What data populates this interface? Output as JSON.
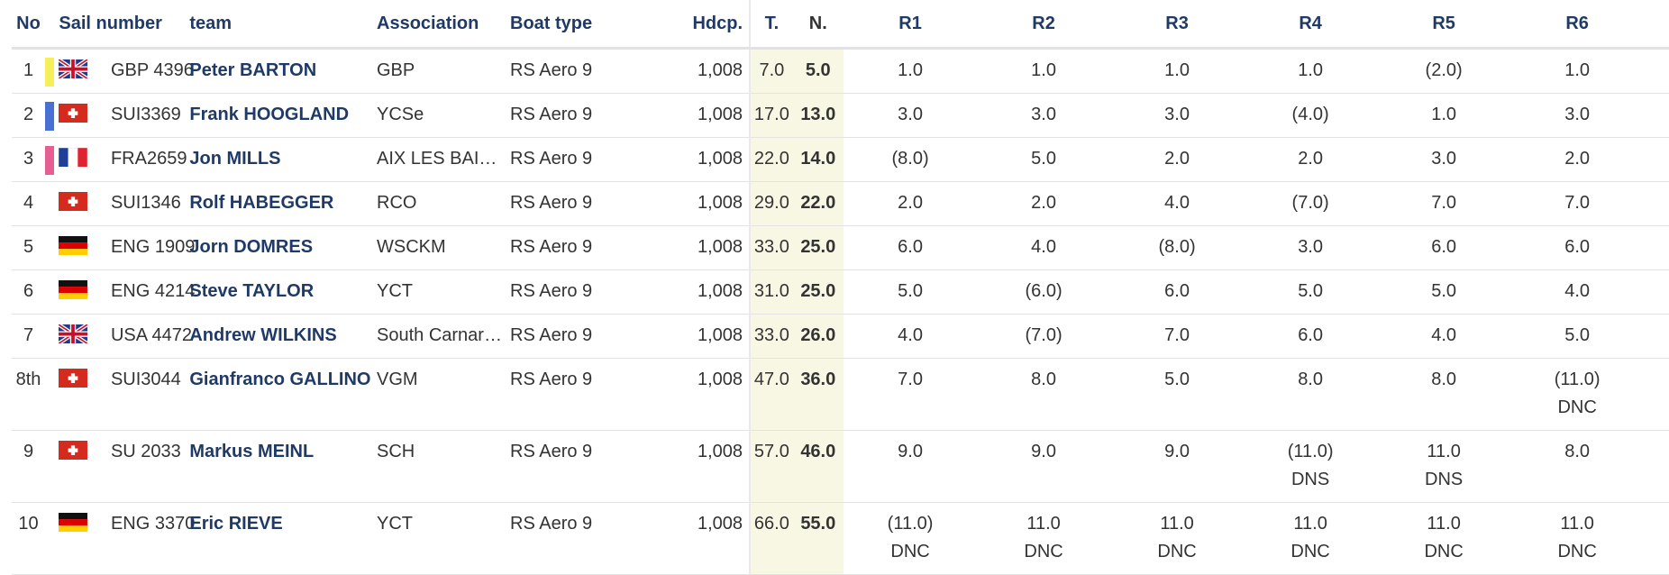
{
  "headers": {
    "no": "No",
    "sail_number": "Sail number",
    "team": "team",
    "association": "Association",
    "boat_type": "Boat type",
    "hdcp": "Hdcp.",
    "total": "T.",
    "net": "N.",
    "r1": "R1",
    "r2": "R2",
    "r3": "R3",
    "r4": "R4",
    "r5": "R5",
    "r6": "R6"
  },
  "colors": {
    "header_text": "#1f3a66",
    "team_text": "#1f3a66",
    "points_bg": "#f8f7e4",
    "gold_marker": "#f5ef5a",
    "silver_marker": "#4a6fd4",
    "bronze_marker": "#e65f93"
  },
  "rows": [
    {
      "no": "1",
      "marker": "gold",
      "flag": "gb-flag-icon",
      "sail": "GBP 4396",
      "team": "Peter BARTON",
      "association": "GBP",
      "boat_type": "RS Aero 9",
      "hdcp": "1,008",
      "total": "7.0",
      "net": "5.0",
      "races": [
        {
          "score": "1.0",
          "note": ""
        },
        {
          "score": "1.0",
          "note": ""
        },
        {
          "score": "1.0",
          "note": ""
        },
        {
          "score": "1.0",
          "note": ""
        },
        {
          "score": "(2.0)",
          "note": ""
        },
        {
          "score": "1.0",
          "note": ""
        }
      ]
    },
    {
      "no": "2",
      "marker": "silver",
      "flag": "ch-flag-icon",
      "sail": "SUI3369",
      "team": "Frank HOOGLAND",
      "association": "YCSe",
      "boat_type": "RS Aero 9",
      "hdcp": "1,008",
      "total": "17.0",
      "net": "13.0",
      "races": [
        {
          "score": "3.0",
          "note": ""
        },
        {
          "score": "3.0",
          "note": ""
        },
        {
          "score": "3.0",
          "note": ""
        },
        {
          "score": "(4.0)",
          "note": ""
        },
        {
          "score": "1.0",
          "note": ""
        },
        {
          "score": "3.0",
          "note": ""
        }
      ]
    },
    {
      "no": "3",
      "marker": "bronze",
      "flag": "fr-flag-icon",
      "sail": "FRA2659",
      "team": "Jon MILLS",
      "association": "AIX LES BAI…",
      "boat_type": "RS Aero 9",
      "hdcp": "1,008",
      "total": "22.0",
      "net": "14.0",
      "races": [
        {
          "score": "(8.0)",
          "note": ""
        },
        {
          "score": "5.0",
          "note": ""
        },
        {
          "score": "2.0",
          "note": ""
        },
        {
          "score": "2.0",
          "note": ""
        },
        {
          "score": "3.0",
          "note": ""
        },
        {
          "score": "2.0",
          "note": ""
        }
      ]
    },
    {
      "no": "4",
      "marker": "",
      "flag": "ch-flag-icon",
      "sail": "SUI1346",
      "team": "Rolf HABEGGER",
      "association": "RCO",
      "boat_type": "RS Aero 9",
      "hdcp": "1,008",
      "total": "29.0",
      "net": "22.0",
      "races": [
        {
          "score": "2.0",
          "note": ""
        },
        {
          "score": "2.0",
          "note": ""
        },
        {
          "score": "4.0",
          "note": ""
        },
        {
          "score": "(7.0)",
          "note": ""
        },
        {
          "score": "7.0",
          "note": ""
        },
        {
          "score": "7.0",
          "note": ""
        }
      ]
    },
    {
      "no": "5",
      "marker": "",
      "flag": "de-flag-icon",
      "sail": "ENG 1909",
      "team": "Jorn DOMRES",
      "association": "WSCKM",
      "boat_type": "RS Aero 9",
      "hdcp": "1,008",
      "total": "33.0",
      "net": "25.0",
      "races": [
        {
          "score": "6.0",
          "note": ""
        },
        {
          "score": "4.0",
          "note": ""
        },
        {
          "score": "(8.0)",
          "note": ""
        },
        {
          "score": "3.0",
          "note": ""
        },
        {
          "score": "6.0",
          "note": ""
        },
        {
          "score": "6.0",
          "note": ""
        }
      ]
    },
    {
      "no": "6",
      "marker": "",
      "flag": "de-flag-icon",
      "sail": "ENG 4214",
      "team": "Steve TAYLOR",
      "association": "YCT",
      "boat_type": "RS Aero 9",
      "hdcp": "1,008",
      "total": "31.0",
      "net": "25.0",
      "races": [
        {
          "score": "5.0",
          "note": ""
        },
        {
          "score": "(6.0)",
          "note": ""
        },
        {
          "score": "6.0",
          "note": ""
        },
        {
          "score": "5.0",
          "note": ""
        },
        {
          "score": "5.0",
          "note": ""
        },
        {
          "score": "4.0",
          "note": ""
        }
      ]
    },
    {
      "no": "7",
      "marker": "",
      "flag": "gb-flag-icon",
      "sail": "USA 4472",
      "team": "Andrew WILKINS",
      "association": "South Carnar…",
      "boat_type": "RS Aero 9",
      "hdcp": "1,008",
      "total": "33.0",
      "net": "26.0",
      "races": [
        {
          "score": "4.0",
          "note": ""
        },
        {
          "score": "(7.0)",
          "note": ""
        },
        {
          "score": "7.0",
          "note": ""
        },
        {
          "score": "6.0",
          "note": ""
        },
        {
          "score": "4.0",
          "note": ""
        },
        {
          "score": "5.0",
          "note": ""
        }
      ]
    },
    {
      "no": "8th",
      "marker": "",
      "flag": "ch-flag-icon",
      "sail": "SUI3044",
      "team": "Gianfranco GALLINO",
      "association": "VGM",
      "boat_type": "RS Aero 9",
      "hdcp": "1,008",
      "total": "47.0",
      "net": "36.0",
      "races": [
        {
          "score": "7.0",
          "note": ""
        },
        {
          "score": "8.0",
          "note": ""
        },
        {
          "score": "5.0",
          "note": ""
        },
        {
          "score": "8.0",
          "note": ""
        },
        {
          "score": "8.0",
          "note": ""
        },
        {
          "score": "(11.0)",
          "note": "DNC"
        }
      ]
    },
    {
      "no": "9",
      "marker": "",
      "flag": "ch-flag-icon",
      "sail": "SU 2033",
      "team": "Markus MEINL",
      "association": "SCH",
      "boat_type": "RS Aero 9",
      "hdcp": "1,008",
      "total": "57.0",
      "net": "46.0",
      "races": [
        {
          "score": "9.0",
          "note": ""
        },
        {
          "score": "9.0",
          "note": ""
        },
        {
          "score": "9.0",
          "note": ""
        },
        {
          "score": "(11.0)",
          "note": "DNS"
        },
        {
          "score": "11.0",
          "note": "DNS"
        },
        {
          "score": "8.0",
          "note": ""
        }
      ]
    },
    {
      "no": "10",
      "marker": "",
      "flag": "de-flag-icon",
      "sail": "ENG 3370",
      "team": "Eric RIEVE",
      "association": "YCT",
      "boat_type": "RS Aero 9",
      "hdcp": "1,008",
      "total": "66.0",
      "net": "55.0",
      "races": [
        {
          "score": "(11.0)",
          "note": "DNC"
        },
        {
          "score": "11.0",
          "note": "DNC"
        },
        {
          "score": "11.0",
          "note": "DNC"
        },
        {
          "score": "11.0",
          "note": "DNC"
        },
        {
          "score": "11.0",
          "note": "DNC"
        },
        {
          "score": "11.0",
          "note": "DNC"
        }
      ]
    }
  ]
}
